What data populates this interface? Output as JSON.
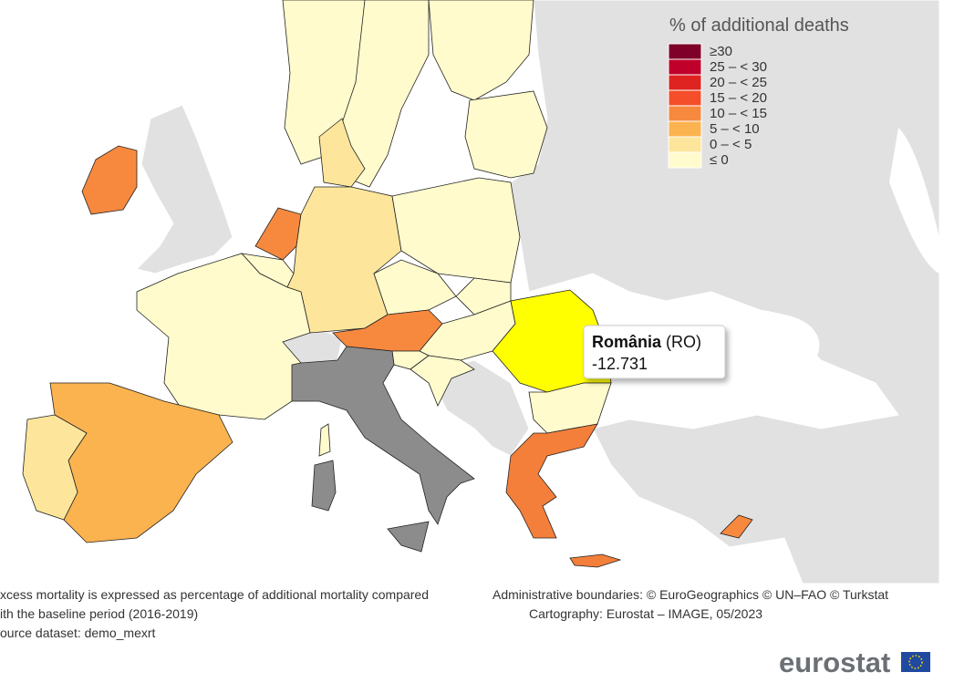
{
  "legend": {
    "title": "% of additional deaths",
    "items": [
      {
        "label": "≥30",
        "color": "#7f0029"
      },
      {
        "label": "25 – < 30",
        "color": "#c0002b"
      },
      {
        "label": "20 – < 25",
        "color": "#de2320"
      },
      {
        "label": "15 – < 20",
        "color": "#f44e2b"
      },
      {
        "label": "10 – < 15",
        "color": "#f7893f"
      },
      {
        "label": "5 – < 10",
        "color": "#fbb34f"
      },
      {
        "label": "0 – < 5",
        "color": "#fde69c"
      },
      {
        "label": "≤ 0",
        "color": "#fffbcc"
      }
    ]
  },
  "tooltip": {
    "name": "România",
    "code": "(RO)",
    "value": -12.731
  },
  "footnotes": {
    "left": [
      "xcess mortality is expressed as percentage of additional mortality compared",
      "ith the baseline period (2016-2019)",
      "ource dataset: demo_mexrt"
    ],
    "right": [
      "Administrative boundaries: © EuroGeographics © UN–FAO © Turkstat",
      "Cartography: Eurostat – IMAGE, 05/2023"
    ]
  },
  "logo": {
    "text": "eurostat"
  }
}
